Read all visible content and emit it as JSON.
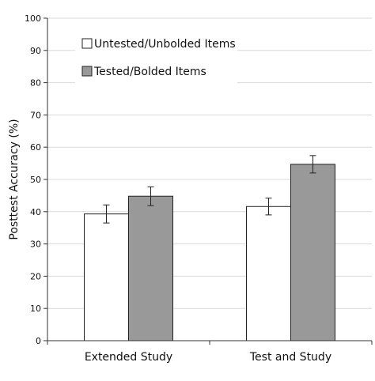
{
  "chart_data": {
    "type": "bar",
    "categories": [
      "Extended Study",
      "Test and Study"
    ],
    "series": [
      {
        "name": "Untested/Unbolded Items",
        "values": [
          39.3,
          41.6
        ],
        "errors": [
          2.8,
          2.6
        ],
        "color": "#ffffff"
      },
      {
        "name": "Tested/Bolded Items",
        "values": [
          44.8,
          54.7
        ],
        "errors": [
          2.9,
          2.7
        ],
        "color": "#999999"
      }
    ],
    "title": "",
    "xlabel": "",
    "ylabel": "Posttest Accuracy (%)",
    "ylim": [
      0,
      100
    ],
    "yticks": [
      0,
      10,
      20,
      30,
      40,
      50,
      60,
      70,
      80,
      90,
      100
    ],
    "grid": true,
    "legend_position": "top-left"
  }
}
